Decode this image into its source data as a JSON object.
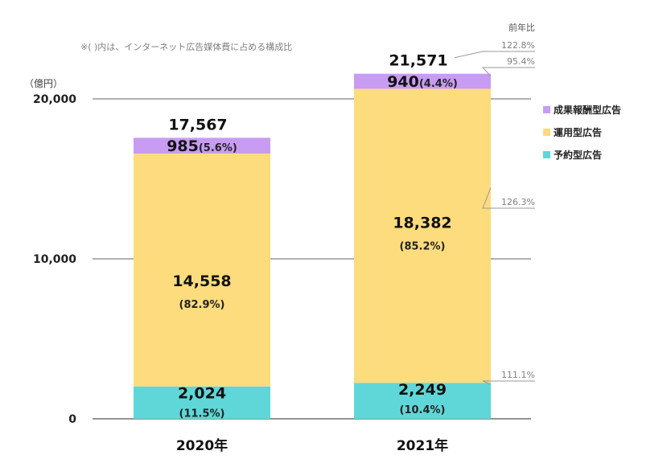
{
  "note": "※(  )内は、インターネット広告媒体費に占める構成比",
  "unit_label": "（億円）",
  "yoy_header": "前年比",
  "chart_data": {
    "type": "bar",
    "stacked": true,
    "categories": [
      "2020年",
      "2021年"
    ],
    "ylim": [
      0,
      20000
    ],
    "y_ticks": [
      "0",
      "10,000",
      "20,000"
    ],
    "y_tick_values": [
      0,
      10000,
      20000
    ],
    "grid": true,
    "legend_position": "right",
    "totals": [
      {
        "value": 17567,
        "label": "17,567"
      },
      {
        "value": 21571,
        "label": "21,571"
      }
    ],
    "series": [
      {
        "name": "予約型広告",
        "color": "#5fd7d9",
        "values": [
          2024,
          2249
        ],
        "value_labels": [
          "2,024",
          "2,249"
        ],
        "share_labels": [
          "(11.5%)",
          "(10.4%)"
        ]
      },
      {
        "name": "運用型広告",
        "color": "#fddc7e",
        "values": [
          14558,
          18382
        ],
        "value_labels": [
          "14,558",
          "18,382"
        ],
        "share_labels": [
          "(82.9%)",
          "(85.2%)"
        ]
      },
      {
        "name": "成果報酬型広告",
        "color": "#c79cf2",
        "values": [
          985,
          940
        ],
        "value_labels": [
          "985",
          "940"
        ],
        "share_labels": [
          "(5.6%)",
          "(4.4%)"
        ]
      }
    ],
    "yoy": [
      {
        "target": "total",
        "label": "122.8%"
      },
      {
        "target": "成果報酬型広告",
        "label": "95.4%"
      },
      {
        "target": "運用型広告",
        "label": "126.3%"
      },
      {
        "target": "予約型広告",
        "label": "111.1%"
      }
    ]
  }
}
